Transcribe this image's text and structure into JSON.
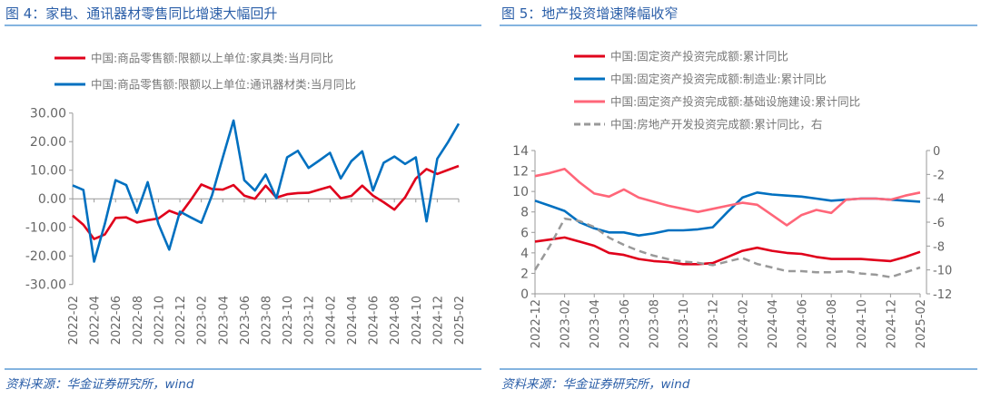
{
  "source": "资料来源：华金证券研究所，wind",
  "chart_data": [
    {
      "type": "line",
      "title": "图 4：家电、通讯器材零售同比增速大幅回升",
      "ylim": [
        -30,
        30
      ],
      "yticks": [
        "30.00",
        "20.00",
        "10.00",
        "0.00",
        "-10.00",
        "-20.00",
        "-30.00"
      ],
      "ytick_values": [
        30,
        20,
        10,
        0,
        -10,
        -20,
        -30
      ],
      "x": [
        "2022-02",
        "2022-03",
        "2022-04",
        "2022-05",
        "2022-06",
        "2022-07",
        "2022-08",
        "2022-09",
        "2022-10",
        "2022-11",
        "2022-12",
        "2023-01",
        "2023-02",
        "2023-03",
        "2023-04",
        "2023-05",
        "2023-06",
        "2023-07",
        "2023-08",
        "2023-09",
        "2023-10",
        "2023-11",
        "2023-12",
        "2024-01",
        "2024-02",
        "2024-03",
        "2024-04",
        "2024-05",
        "2024-06",
        "2024-07",
        "2024-08",
        "2024-09",
        "2024-10",
        "2024-11",
        "2024-12",
        "2025-01",
        "2025-02"
      ],
      "xtick_labels": [
        "2022-02",
        "2022-04",
        "2022-06",
        "2022-08",
        "2022-10",
        "2022-12",
        "2023-02",
        "2023-04",
        "2023-06",
        "2023-08",
        "2023-10",
        "2023-12",
        "2024-02",
        "2024-04",
        "2024-06",
        "2024-08",
        "2024-10",
        "2024-12",
        "2025-02"
      ],
      "grid": false,
      "legend_position": "top",
      "series": [
        {
          "name": "中国:商品零售额:限额以上单位:家具类:当月同比",
          "color": "#e0001b",
          "values": [
            -5.9,
            -9.1,
            -14.1,
            -12.5,
            -6.7,
            -6.5,
            -8.3,
            -7.5,
            -6.9,
            -4.2,
            -5.6,
            -0.5,
            5.0,
            3.4,
            3.2,
            4.8,
            1.1,
            0.0,
            4.6,
            0.4,
            1.6,
            2.0,
            2.1,
            3.2,
            4.3,
            0.2,
            1.0,
            4.6,
            1.1,
            -1.2,
            -3.8,
            0.5,
            7.1,
            10.4,
            8.7,
            10.1,
            11.5
          ]
        },
        {
          "name": "中国:商品零售额:限额以上单位:通讯器材类:当月同比",
          "color": "#0070c0",
          "values": [
            4.7,
            3.1,
            -22.0,
            -8.8,
            6.5,
            4.8,
            -4.9,
            5.8,
            -8.8,
            -17.8,
            -4.5,
            -6.5,
            -8.4,
            1.3,
            14.5,
            27.4,
            6.5,
            2.9,
            8.5,
            0.2,
            14.5,
            16.8,
            10.8,
            13.4,
            16.1,
            7.1,
            13.2,
            16.6,
            2.9,
            12.6,
            14.8,
            12.2,
            14.5,
            -7.9,
            14.0,
            19.8,
            26.3
          ]
        }
      ]
    },
    {
      "type": "line",
      "title": "图 5：地产投资增速降幅收窄",
      "ylim": [
        0,
        14
      ],
      "yticks": [
        "14",
        "12",
        "10",
        "8",
        "6",
        "4",
        "2",
        "0"
      ],
      "ytick_values": [
        14,
        12,
        10,
        8,
        6,
        4,
        2,
        0
      ],
      "y2lim": [
        -12,
        0
      ],
      "y2ticks": [
        "0",
        "-2",
        "-4",
        "-6",
        "-8",
        "-10",
        "-12"
      ],
      "y2tick_values": [
        0,
        -2,
        -4,
        -6,
        -8,
        -10,
        -12
      ],
      "x": [
        "2022-12",
        "2023-01",
        "2023-02",
        "2023-03",
        "2023-04",
        "2023-05",
        "2023-06",
        "2023-07",
        "2023-08",
        "2023-09",
        "2023-10",
        "2023-11",
        "2023-12",
        "2024-01",
        "2024-02",
        "2024-03",
        "2024-04",
        "2024-05",
        "2024-06",
        "2024-07",
        "2024-08",
        "2024-09",
        "2024-10",
        "2024-11",
        "2024-12",
        "2025-01",
        "2025-02"
      ],
      "xtick_labels": [
        "2022-12",
        "2023-02",
        "2023-04",
        "2023-06",
        "2023-08",
        "2023-10",
        "2023-12",
        "2024-02",
        "2024-04",
        "2024-06",
        "2024-08",
        "2024-10",
        "2024-12",
        "2025-02"
      ],
      "grid": false,
      "legend_position": "top",
      "series": [
        {
          "name": "中国:固定资产投资完成额:累计同比",
          "color": "#e0001b",
          "axis": "left",
          "dash": false,
          "values": [
            5.1,
            5.3,
            5.5,
            5.1,
            4.7,
            4.0,
            3.8,
            3.4,
            3.2,
            3.1,
            2.9,
            2.9,
            3.0,
            3.6,
            4.2,
            4.5,
            4.2,
            4.0,
            3.9,
            3.6,
            3.4,
            3.4,
            3.4,
            3.3,
            3.2,
            3.6,
            4.1
          ]
        },
        {
          "name": "中国:固定资产投资完成额:制造业:累计同比",
          "color": "#0070c0",
          "axis": "left",
          "dash": false,
          "values": [
            9.1,
            8.6,
            8.1,
            7.0,
            6.4,
            6.0,
            6.0,
            5.7,
            5.9,
            6.2,
            6.2,
            6.3,
            6.5,
            8.0,
            9.4,
            9.9,
            9.7,
            9.6,
            9.5,
            9.3,
            9.1,
            9.2,
            9.3,
            9.3,
            9.2,
            9.1,
            9.0
          ]
        },
        {
          "name": "中国:固定资产投资完成额:基础设施建设:累计同比",
          "color": "#ff6679",
          "axis": "left",
          "dash": false,
          "values": [
            11.5,
            11.8,
            12.2,
            10.9,
            9.8,
            9.5,
            10.2,
            9.4,
            9.0,
            8.6,
            8.3,
            8.0,
            8.3,
            8.6,
            8.9,
            8.7,
            7.7,
            6.7,
            7.7,
            8.2,
            7.9,
            9.2,
            9.3,
            9.3,
            9.2,
            9.6,
            9.9
          ]
        },
        {
          "name": "中国:房地产开发投资完成额:累计同比，右",
          "color": "#999999",
          "axis": "right",
          "dash": true,
          "values": [
            -10.0,
            -8.0,
            -5.7,
            -5.9,
            -6.4,
            -7.3,
            -7.9,
            -8.4,
            -8.8,
            -9.1,
            -9.3,
            -9.4,
            -9.6,
            -9.3,
            -9.0,
            -9.5,
            -9.8,
            -10.1,
            -10.1,
            -10.2,
            -10.2,
            -10.1,
            -10.3,
            -10.4,
            -10.6,
            -10.2,
            -9.8
          ]
        }
      ]
    }
  ]
}
